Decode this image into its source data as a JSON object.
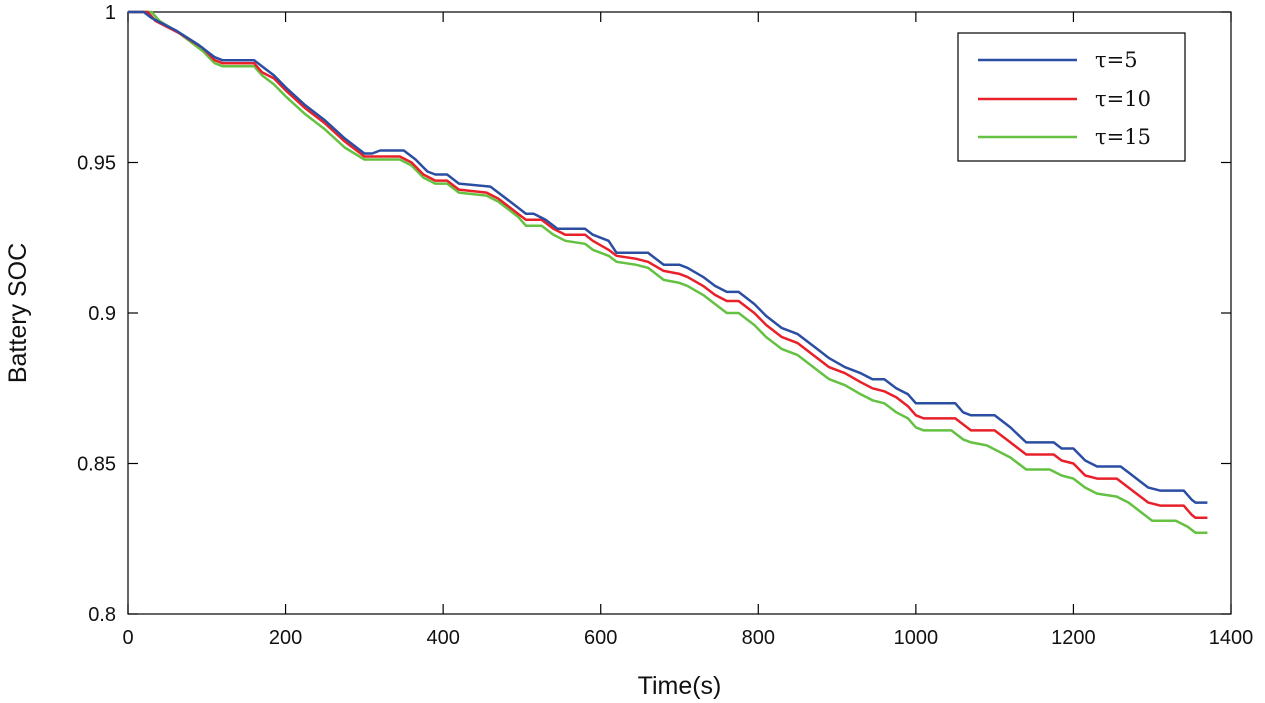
{
  "chart_data": {
    "type": "line",
    "title": "",
    "xlabel": "Time(s)",
    "ylabel": "Battery SOC",
    "xlim": [
      0,
      1400
    ],
    "ylim": [
      0.8,
      1.0
    ],
    "xticks": [
      0,
      200,
      400,
      600,
      800,
      1000,
      1200,
      1400
    ],
    "xtick_labels": [
      "0",
      "200",
      "400",
      "600",
      "800",
      "1000",
      "1200",
      "1400"
    ],
    "yticks": [
      0.8,
      0.85,
      0.9,
      0.95,
      1.0
    ],
    "ytick_labels": [
      "0.8",
      "0.85",
      "0.9",
      "0.95",
      "1"
    ],
    "grid": false,
    "legend_position": "top-right",
    "series": [
      {
        "name": "τ=5",
        "color": "#2b4ea2",
        "points": [
          [
            0,
            1.0
          ],
          [
            20,
            1.0
          ],
          [
            30,
            0.998
          ],
          [
            60,
            0.994
          ],
          [
            90,
            0.989
          ],
          [
            110,
            0.985
          ],
          [
            120,
            0.984
          ],
          [
            160,
            0.984
          ],
          [
            170,
            0.982
          ],
          [
            185,
            0.979
          ],
          [
            200,
            0.975
          ],
          [
            225,
            0.969
          ],
          [
            250,
            0.964
          ],
          [
            275,
            0.958
          ],
          [
            300,
            0.953
          ],
          [
            310,
            0.953
          ],
          [
            320,
            0.954
          ],
          [
            350,
            0.954
          ],
          [
            365,
            0.951
          ],
          [
            380,
            0.947
          ],
          [
            390,
            0.946
          ],
          [
            405,
            0.946
          ],
          [
            420,
            0.943
          ],
          [
            460,
            0.942
          ],
          [
            470,
            0.94
          ],
          [
            495,
            0.935
          ],
          [
            505,
            0.933
          ],
          [
            515,
            0.933
          ],
          [
            530,
            0.931
          ],
          [
            545,
            0.928
          ],
          [
            580,
            0.928
          ],
          [
            590,
            0.926
          ],
          [
            610,
            0.924
          ],
          [
            620,
            0.92
          ],
          [
            660,
            0.92
          ],
          [
            680,
            0.916
          ],
          [
            700,
            0.916
          ],
          [
            710,
            0.915
          ],
          [
            730,
            0.912
          ],
          [
            745,
            0.909
          ],
          [
            760,
            0.907
          ],
          [
            775,
            0.907
          ],
          [
            795,
            0.903
          ],
          [
            810,
            0.899
          ],
          [
            830,
            0.895
          ],
          [
            850,
            0.893
          ],
          [
            875,
            0.888
          ],
          [
            890,
            0.885
          ],
          [
            910,
            0.882
          ],
          [
            930,
            0.88
          ],
          [
            945,
            0.878
          ],
          [
            960,
            0.878
          ],
          [
            975,
            0.875
          ],
          [
            990,
            0.873
          ],
          [
            1000,
            0.87
          ],
          [
            1050,
            0.87
          ],
          [
            1060,
            0.867
          ],
          [
            1070,
            0.866
          ],
          [
            1100,
            0.866
          ],
          [
            1120,
            0.862
          ],
          [
            1140,
            0.857
          ],
          [
            1175,
            0.857
          ],
          [
            1185,
            0.855
          ],
          [
            1200,
            0.855
          ],
          [
            1215,
            0.851
          ],
          [
            1230,
            0.849
          ],
          [
            1260,
            0.849
          ],
          [
            1270,
            0.847
          ],
          [
            1285,
            0.844
          ],
          [
            1295,
            0.842
          ],
          [
            1310,
            0.841
          ],
          [
            1340,
            0.841
          ],
          [
            1350,
            0.838
          ],
          [
            1355,
            0.837
          ],
          [
            1370,
            0.837
          ]
        ]
      },
      {
        "name": "τ=10",
        "color": "#e8202a",
        "points": [
          [
            0,
            1.0
          ],
          [
            25,
            1.0
          ],
          [
            35,
            0.997
          ],
          [
            65,
            0.993
          ],
          [
            95,
            0.988
          ],
          [
            110,
            0.984
          ],
          [
            120,
            0.983
          ],
          [
            160,
            0.983
          ],
          [
            170,
            0.98
          ],
          [
            185,
            0.978
          ],
          [
            200,
            0.974
          ],
          [
            225,
            0.968
          ],
          [
            250,
            0.963
          ],
          [
            275,
            0.957
          ],
          [
            300,
            0.952
          ],
          [
            345,
            0.952
          ],
          [
            360,
            0.95
          ],
          [
            375,
            0.946
          ],
          [
            390,
            0.944
          ],
          [
            405,
            0.944
          ],
          [
            420,
            0.941
          ],
          [
            455,
            0.94
          ],
          [
            470,
            0.938
          ],
          [
            495,
            0.933
          ],
          [
            505,
            0.931
          ],
          [
            525,
            0.931
          ],
          [
            540,
            0.928
          ],
          [
            555,
            0.926
          ],
          [
            580,
            0.926
          ],
          [
            590,
            0.924
          ],
          [
            610,
            0.921
          ],
          [
            620,
            0.919
          ],
          [
            645,
            0.918
          ],
          [
            660,
            0.917
          ],
          [
            680,
            0.914
          ],
          [
            700,
            0.913
          ],
          [
            710,
            0.912
          ],
          [
            730,
            0.909
          ],
          [
            745,
            0.906
          ],
          [
            760,
            0.904
          ],
          [
            775,
            0.904
          ],
          [
            795,
            0.9
          ],
          [
            810,
            0.896
          ],
          [
            830,
            0.892
          ],
          [
            850,
            0.89
          ],
          [
            875,
            0.885
          ],
          [
            890,
            0.882
          ],
          [
            910,
            0.88
          ],
          [
            930,
            0.877
          ],
          [
            945,
            0.875
          ],
          [
            960,
            0.874
          ],
          [
            975,
            0.872
          ],
          [
            990,
            0.869
          ],
          [
            1000,
            0.866
          ],
          [
            1010,
            0.865
          ],
          [
            1050,
            0.865
          ],
          [
            1060,
            0.863
          ],
          [
            1070,
            0.861
          ],
          [
            1100,
            0.861
          ],
          [
            1120,
            0.857
          ],
          [
            1140,
            0.853
          ],
          [
            1175,
            0.853
          ],
          [
            1185,
            0.851
          ],
          [
            1200,
            0.85
          ],
          [
            1215,
            0.846
          ],
          [
            1230,
            0.845
          ],
          [
            1255,
            0.845
          ],
          [
            1270,
            0.842
          ],
          [
            1285,
            0.839
          ],
          [
            1295,
            0.837
          ],
          [
            1310,
            0.836
          ],
          [
            1340,
            0.836
          ],
          [
            1350,
            0.833
          ],
          [
            1355,
            0.832
          ],
          [
            1370,
            0.832
          ]
        ]
      },
      {
        "name": "τ=15",
        "color": "#64c142",
        "points": [
          [
            0,
            1.0
          ],
          [
            30,
            1.0
          ],
          [
            40,
            0.997
          ],
          [
            65,
            0.993
          ],
          [
            95,
            0.987
          ],
          [
            110,
            0.983
          ],
          [
            120,
            0.982
          ],
          [
            160,
            0.982
          ],
          [
            170,
            0.979
          ],
          [
            185,
            0.976
          ],
          [
            200,
            0.972
          ],
          [
            225,
            0.966
          ],
          [
            250,
            0.961
          ],
          [
            275,
            0.955
          ],
          [
            300,
            0.951
          ],
          [
            345,
            0.951
          ],
          [
            360,
            0.949
          ],
          [
            375,
            0.945
          ],
          [
            390,
            0.943
          ],
          [
            405,
            0.943
          ],
          [
            420,
            0.94
          ],
          [
            455,
            0.939
          ],
          [
            470,
            0.937
          ],
          [
            495,
            0.932
          ],
          [
            505,
            0.929
          ],
          [
            525,
            0.929
          ],
          [
            540,
            0.926
          ],
          [
            555,
            0.924
          ],
          [
            580,
            0.923
          ],
          [
            590,
            0.921
          ],
          [
            610,
            0.919
          ],
          [
            620,
            0.917
          ],
          [
            645,
            0.916
          ],
          [
            660,
            0.915
          ],
          [
            680,
            0.911
          ],
          [
            700,
            0.91
          ],
          [
            710,
            0.909
          ],
          [
            730,
            0.906
          ],
          [
            745,
            0.903
          ],
          [
            760,
            0.9
          ],
          [
            775,
            0.9
          ],
          [
            795,
            0.896
          ],
          [
            810,
            0.892
          ],
          [
            830,
            0.888
          ],
          [
            850,
            0.886
          ],
          [
            875,
            0.881
          ],
          [
            890,
            0.878
          ],
          [
            910,
            0.876
          ],
          [
            930,
            0.873
          ],
          [
            945,
            0.871
          ],
          [
            960,
            0.87
          ],
          [
            975,
            0.867
          ],
          [
            990,
            0.865
          ],
          [
            1000,
            0.862
          ],
          [
            1010,
            0.861
          ],
          [
            1045,
            0.861
          ],
          [
            1060,
            0.858
          ],
          [
            1070,
            0.857
          ],
          [
            1090,
            0.856
          ],
          [
            1120,
            0.852
          ],
          [
            1140,
            0.848
          ],
          [
            1170,
            0.848
          ],
          [
            1185,
            0.846
          ],
          [
            1200,
            0.845
          ],
          [
            1215,
            0.842
          ],
          [
            1230,
            0.84
          ],
          [
            1255,
            0.839
          ],
          [
            1270,
            0.837
          ],
          [
            1285,
            0.834
          ],
          [
            1300,
            0.831
          ],
          [
            1330,
            0.831
          ],
          [
            1345,
            0.829
          ],
          [
            1355,
            0.827
          ],
          [
            1370,
            0.827
          ]
        ]
      }
    ]
  }
}
